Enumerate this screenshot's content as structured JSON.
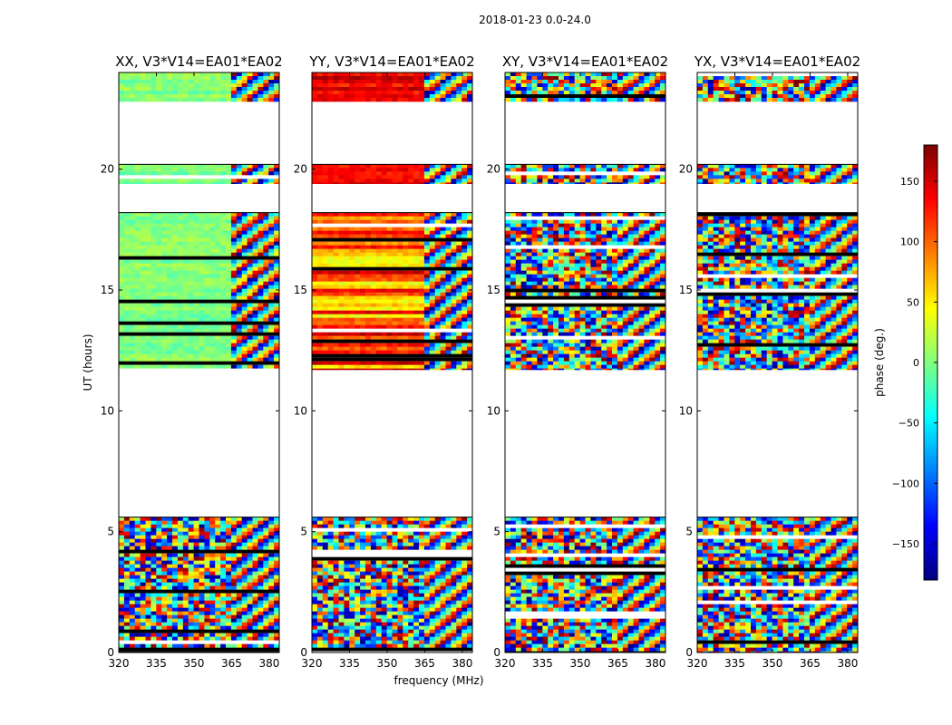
{
  "chart_data": {
    "type": "heatmap",
    "suptitle": "2018-01-23 0.0-24.0",
    "xlabel": "frequency (MHz)",
    "ylabel": "UT (hours)",
    "xlim": [
      320,
      384
    ],
    "ylim": [
      0,
      24
    ],
    "xticks": [
      320,
      335,
      350,
      365,
      380
    ],
    "yticks": [
      0,
      5,
      10,
      15,
      20
    ],
    "panels": [
      {
        "title": "XX, V3*V14=EA01*EA02",
        "pol": "XX"
      },
      {
        "title": "YY, V3*V14=EA01*EA02",
        "pol": "YY"
      },
      {
        "title": "XY, V3*V14=EA01*EA02",
        "pol": "XY"
      },
      {
        "title": "YX, V3*V14=EA01*EA02",
        "pol": "YX"
      }
    ],
    "data_blocks_hours": [
      [
        0,
        5.6
      ],
      [
        11.7,
        18.2
      ],
      [
        19.4,
        20.2
      ],
      [
        22.8,
        24.0
      ]
    ],
    "colorbar": {
      "label": "phase (deg.)",
      "range": [
        -180,
        180
      ],
      "ticks": [
        -150,
        -100,
        -50,
        0,
        50,
        100,
        150
      ],
      "colormap": "jet"
    }
  }
}
